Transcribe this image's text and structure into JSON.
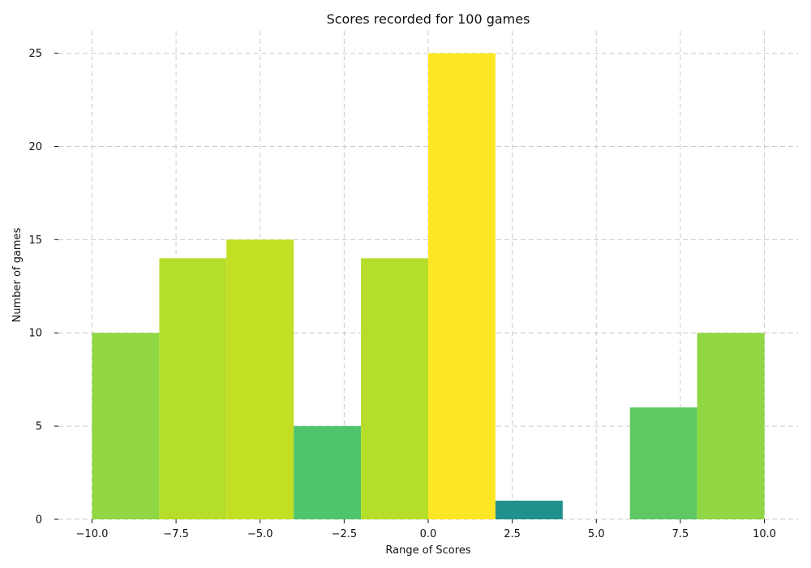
{
  "chart_data": {
    "type": "bar",
    "title": "Scores recorded for 100 games",
    "xlabel": "Range of Scores",
    "ylabel": "Number of games",
    "xlim": [
      -11.0,
      11.0
    ],
    "ylim": [
      0,
      26.2
    ],
    "grid": true,
    "legend": "none",
    "x_ticks": [
      -10.0,
      -7.5,
      -5.0,
      -2.5,
      0.0,
      2.5,
      5.0,
      7.5,
      10.0
    ],
    "x_tick_labels": [
      "−10.0",
      "−7.5",
      "−5.0",
      "−2.5",
      "0.0",
      "2.5",
      "5.0",
      "7.5",
      "10.0"
    ],
    "y_ticks": [
      0,
      5,
      10,
      15,
      20,
      25
    ],
    "y_tick_labels": [
      "0",
      "5",
      "10",
      "15",
      "20",
      "25"
    ],
    "bins": [
      {
        "x0": -10,
        "x1": -8,
        "value": 10,
        "color": "#90d743"
      },
      {
        "x0": -8,
        "x1": -6,
        "value": 14,
        "color": "#b5de2b"
      },
      {
        "x0": -6,
        "x1": -4,
        "value": 15,
        "color": "#c2df23"
      },
      {
        "x0": -4,
        "x1": -2,
        "value": 5,
        "color": "#4fc46a"
      },
      {
        "x0": -2,
        "x1": 0,
        "value": 14,
        "color": "#b5de2b"
      },
      {
        "x0": 0,
        "x1": 2,
        "value": 25,
        "color": "#fde725"
      },
      {
        "x0": 2,
        "x1": 4,
        "value": 1,
        "color": "#21918c"
      },
      {
        "x0": 4,
        "x1": 6,
        "value": 0,
        "color": "#440154"
      },
      {
        "x0": 6,
        "x1": 8,
        "value": 6,
        "color": "#5ec962"
      },
      {
        "x0": 8,
        "x1": 10,
        "value": 10,
        "color": "#90d743"
      }
    ]
  }
}
